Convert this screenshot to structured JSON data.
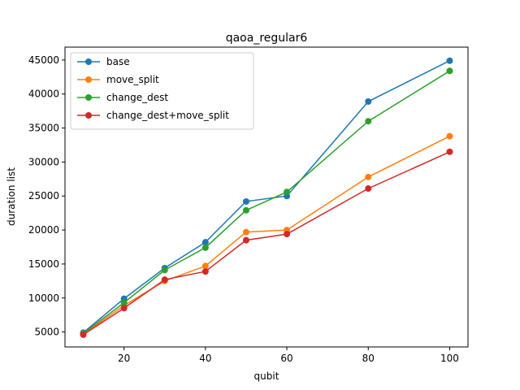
{
  "chart_data": {
    "type": "line",
    "title": "qaoa_regular6",
    "xlabel": "qubit",
    "ylabel": "duration list",
    "xlim": [
      5.5,
      104.5
    ],
    "ylim": [
      2800,
      46900
    ],
    "xticks": [
      20,
      40,
      60,
      80,
      100
    ],
    "yticks": [
      5000,
      10000,
      15000,
      20000,
      25000,
      30000,
      35000,
      40000,
      45000
    ],
    "grid": false,
    "legend_position": "top-left",
    "x": [
      10,
      20,
      30,
      40,
      50,
      60,
      80,
      100
    ],
    "series": [
      {
        "name": "base",
        "color": "#1f77b4",
        "values": [
          4900,
          9900,
          14400,
          18200,
          24200,
          25000,
          38900,
          44900
        ]
      },
      {
        "name": "move_split",
        "color": "#ff7f0e",
        "values": [
          4700,
          8900,
          12500,
          14700,
          19700,
          20000,
          27800,
          33800
        ]
      },
      {
        "name": "change_dest",
        "color": "#2ca02c",
        "values": [
          4800,
          9300,
          14100,
          17400,
          22900,
          25600,
          36000,
          43400
        ]
      },
      {
        "name": "change_dest+move_split",
        "color": "#d62728",
        "values": [
          4600,
          8500,
          12700,
          13900,
          18500,
          19400,
          26100,
          31500
        ]
      }
    ]
  }
}
